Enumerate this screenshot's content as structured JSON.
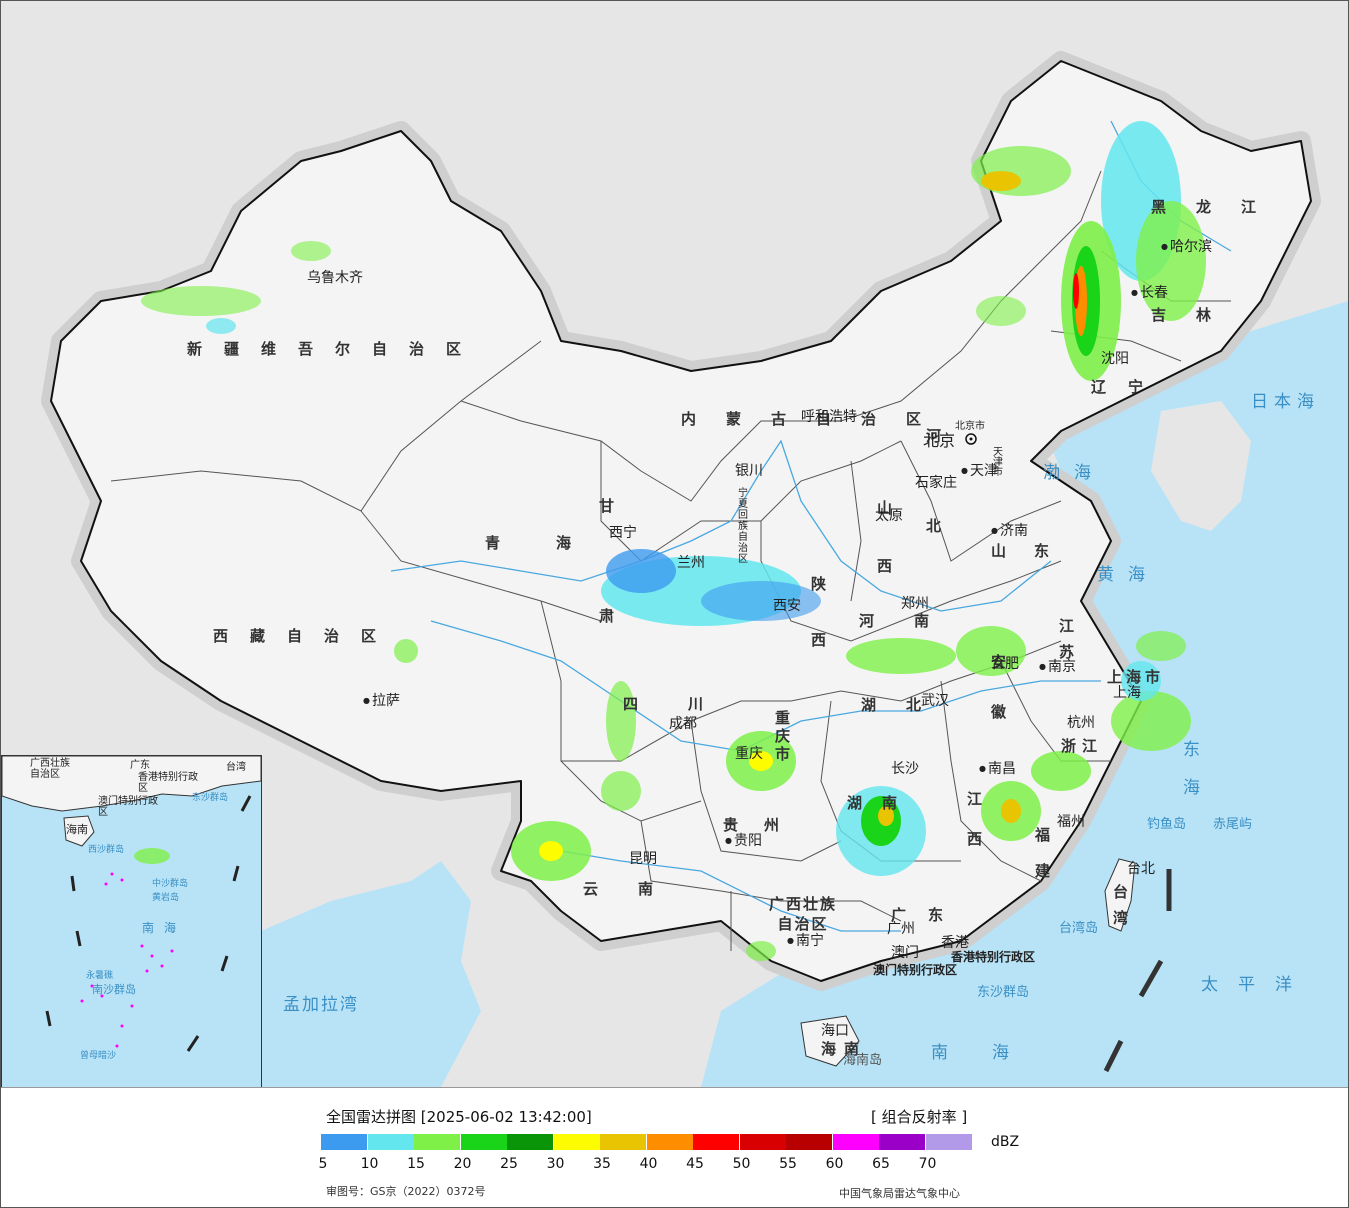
{
  "regions": [
    {
      "id": "xinjiang",
      "name": "新疆维吾尔自治区"
    },
    {
      "id": "xizang",
      "name": "西藏自治区"
    },
    {
      "id": "qinghai",
      "name": "青海"
    },
    {
      "id": "gansu",
      "name": "甘肃"
    },
    {
      "id": "neimenggu",
      "name": "内蒙古自治区"
    },
    {
      "id": "heilongjiang",
      "name": "黑龙江"
    },
    {
      "id": "jilin",
      "name": "吉林"
    },
    {
      "id": "liaoning",
      "name": "辽宁"
    },
    {
      "id": "hebei",
      "name": "河北"
    },
    {
      "id": "shanxi",
      "name": "山西"
    },
    {
      "id": "shaanxi",
      "name": "陕西"
    },
    {
      "id": "ningxia",
      "name": "宁夏回族自治区"
    },
    {
      "id": "henan",
      "name": "河南"
    },
    {
      "id": "shandong",
      "name": "山东"
    },
    {
      "id": "jiangsu",
      "name": "江苏"
    },
    {
      "id": "anhui",
      "name": "安徽"
    },
    {
      "id": "zhejiang",
      "name": "浙江"
    },
    {
      "id": "shanghai",
      "name": "上海市"
    },
    {
      "id": "hubei",
      "name": "湖北"
    },
    {
      "id": "hunan",
      "name": "湖南"
    },
    {
      "id": "jiangxi",
      "name": "江西"
    },
    {
      "id": "fujian",
      "name": "福建"
    },
    {
      "id": "taiwan",
      "name": "台湾"
    },
    {
      "id": "guangdong",
      "name": "广东"
    },
    {
      "id": "guangxi",
      "name": "广西壮族自治区"
    },
    {
      "id": "hainan",
      "name": "海南"
    },
    {
      "id": "guizhou",
      "name": "贵州"
    },
    {
      "id": "yunnan",
      "name": "云南"
    },
    {
      "id": "sichuan",
      "name": "四川"
    },
    {
      "id": "chongqing",
      "name": "重庆市"
    },
    {
      "id": "beijing",
      "name": "北京市"
    },
    {
      "id": "tianjin",
      "name": "天津市"
    },
    {
      "id": "hongkong",
      "name": "香港特别行政区"
    },
    {
      "id": "macau",
      "name": "澳门特别行政区"
    }
  ],
  "cities": [
    {
      "id": "urumqi",
      "name": "乌鲁木齐"
    },
    {
      "id": "lhasa",
      "name": "拉萨"
    },
    {
      "id": "xining",
      "name": "西宁"
    },
    {
      "id": "lanzhou",
      "name": "兰州"
    },
    {
      "id": "yinchuan",
      "name": "银川"
    },
    {
      "id": "hohhot",
      "name": "呼和浩特"
    },
    {
      "id": "harbin",
      "name": "哈尔滨"
    },
    {
      "id": "changchun",
      "name": "长春"
    },
    {
      "id": "shenyang",
      "name": "沈阳"
    },
    {
      "id": "beijing",
      "name": "北京"
    },
    {
      "id": "tianjin",
      "name": "天津"
    },
    {
      "id": "shijiazhuang",
      "name": "石家庄"
    },
    {
      "id": "taiyuan",
      "name": "太原"
    },
    {
      "id": "jinan",
      "name": "济南"
    },
    {
      "id": "xian",
      "name": "西安"
    },
    {
      "id": "zhengzhou",
      "name": "郑州"
    },
    {
      "id": "nanjing",
      "name": "南京"
    },
    {
      "id": "hefei",
      "name": "合肥"
    },
    {
      "id": "shanghai",
      "name": "上海"
    },
    {
      "id": "hangzhou",
      "name": "杭州"
    },
    {
      "id": "wuhan",
      "name": "武汉"
    },
    {
      "id": "chengdu",
      "name": "成都"
    },
    {
      "id": "chongqing",
      "name": "重庆"
    },
    {
      "id": "changsha",
      "name": "长沙"
    },
    {
      "id": "nanchang",
      "name": "南昌"
    },
    {
      "id": "fuzhou",
      "name": "福州"
    },
    {
      "id": "guiyang",
      "name": "贵阳"
    },
    {
      "id": "kunming",
      "name": "昆明"
    },
    {
      "id": "nanning",
      "name": "南宁"
    },
    {
      "id": "guangzhou",
      "name": "广州"
    },
    {
      "id": "xianggang",
      "name": "香港"
    },
    {
      "id": "aomen",
      "name": "澳门"
    },
    {
      "id": "haikou",
      "name": "海口"
    },
    {
      "id": "taibei",
      "name": "台北"
    }
  ],
  "seas": [
    {
      "id": "bohai",
      "name": "渤海"
    },
    {
      "id": "huanghai",
      "name": "黄海"
    },
    {
      "id": "donghai",
      "name": "东海"
    },
    {
      "id": "nanhai",
      "name": "南海"
    },
    {
      "id": "taipingyang",
      "name": "太平洋"
    },
    {
      "id": "ribenhai",
      "name": "日本海"
    },
    {
      "id": "mengjialawan",
      "name": "孟加拉湾"
    }
  ],
  "islands": [
    {
      "id": "diaoyudao",
      "name": "钓鱼岛"
    },
    {
      "id": "chiweiyu",
      "name": "赤尾屿"
    },
    {
      "id": "taiwandao",
      "name": "台湾岛"
    },
    {
      "id": "dongsha",
      "name": "东沙群岛"
    },
    {
      "id": "hainandao",
      "name": "海南岛"
    }
  ],
  "inset": {
    "labels": {
      "nanhai": "南海",
      "hainan": "海南",
      "guangxi": "广西壮族自治区",
      "guangdong": "广东",
      "hk": "香港特别行政区",
      "macau": "澳门特别行政区",
      "taiwan": "台湾",
      "dongsha": "东沙群岛",
      "xisha": "西沙群岛",
      "zhongsha": "中沙群岛",
      "nansha": "南沙群岛",
      "huangyan": "黄岩岛",
      "zengmu": "曾母暗沙",
      "yongshu": "永暑礁"
    }
  },
  "legend": {
    "title": "全国雷达拼图 [2025-06-02 13:42:00]",
    "product": "[ 组合反射率 ]",
    "unit": "dBZ",
    "colors": [
      "#3d9bef",
      "#63e6ee",
      "#7ef048",
      "#19d418",
      "#0a9508",
      "#fdfc01",
      "#e8c402",
      "#fe8d00",
      "#ff0000",
      "#d80000",
      "#b80000",
      "#fe00fe",
      "#9b00c8",
      "#b29ae9"
    ],
    "ticks": [
      "5",
      "10",
      "15",
      "20",
      "25",
      "30",
      "35",
      "40",
      "45",
      "50",
      "55",
      "60",
      "65",
      "70"
    ],
    "review": "审图号：GS京（2022）0372号",
    "source": "中国气象局雷达气象中心"
  }
}
